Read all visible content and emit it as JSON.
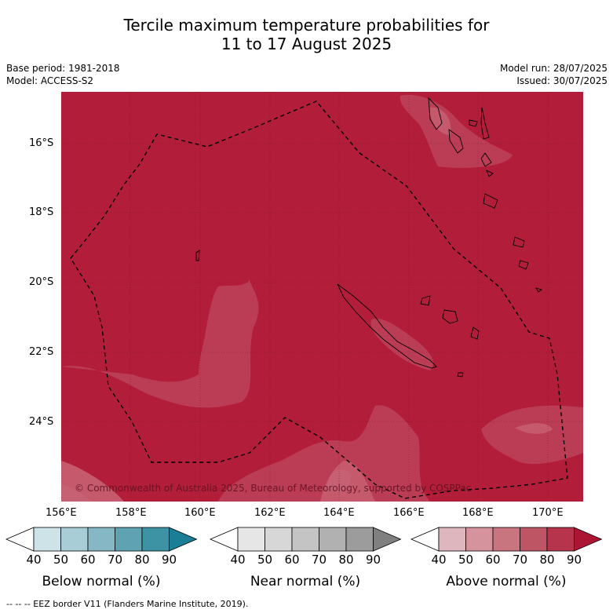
{
  "title_line1": "Tercile maximum temperature probabilities for",
  "title_line2": "11 to 17 August 2025",
  "base_period": "Base period: 1981-2018",
  "model": "Model: ACCESS-S2",
  "model_run": "Model run: 28/07/2025",
  "issued": "Issued: 30/07/2025",
  "copyright": "© Commonwealth of Australia 2025, Bureau of Meteorology, supported by COSPPac",
  "lat_labels": [
    "16°S",
    "18°S",
    "20°S",
    "22°S",
    "24°S"
  ],
  "lon_labels": [
    "156°E",
    "158°E",
    "160°E",
    "162°E",
    "164°E",
    "166°E",
    "168°E",
    "170°E"
  ],
  "legends": [
    {
      "label": "Below normal (%)",
      "colors": [
        "#ffffff",
        "#cde3e8",
        "#a9cdd6",
        "#85b7c4",
        "#5fa2b2",
        "#3d92a4",
        "#1a7f96"
      ]
    },
    {
      "label": "Near normal (%)",
      "colors": [
        "#ffffff",
        "#e6e6e6",
        "#d7d7d7",
        "#c4c4c4",
        "#b1b1b1",
        "#9c9c9c",
        "#808080"
      ]
    },
    {
      "label": "Above normal (%)",
      "colors": [
        "#ffffff",
        "#deb6be",
        "#d4939d",
        "#c9757f",
        "#be5564",
        "#b6354c",
        "#ad1535"
      ]
    }
  ],
  "cb_ticks": [
    "40",
    "50",
    "60",
    "70",
    "80",
    "90"
  ],
  "footer": "-- -- -- EEZ border V11 (Flanders Marine Institute, 2019).",
  "colors": {
    "dominant": "#b21e3a",
    "level80": "#bb3d55",
    "level70": "#c55a6d",
    "ocean_low": "#c66173"
  }
}
